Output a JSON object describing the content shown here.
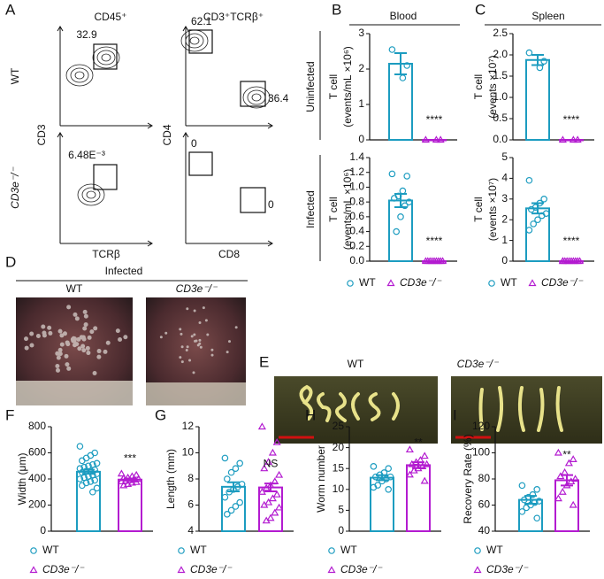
{
  "flow": {
    "letter": "A",
    "rows": [
      "WT",
      "CD3e⁻/⁻"
    ],
    "plots": [
      {
        "title": "CD45⁺",
        "xlabel": "TCRβ",
        "ylabel": "CD3",
        "gates": [
          [
            "32.9"
          ],
          [
            "6.48E⁻³"
          ]
        ]
      },
      {
        "title": "CD3⁺TCRβ⁺",
        "xlabel": "CD8",
        "ylabel": "CD4",
        "gates": [
          [
            "62.1",
            "36.4"
          ],
          [
            "0",
            "0"
          ]
        ]
      }
    ]
  },
  "bars": {
    "B": {
      "letter": "B",
      "title": "Blood",
      "groups": [
        {
          "name": "WT",
          "color": "#1c9cc0"
        },
        {
          "name": "CD3e⁻/⁻",
          "color": "#b31bd0"
        }
      ],
      "plots": [
        {
          "row": "Uninfected",
          "ylabel": [
            "T cell",
            "(events/mL ×10⁶)"
          ],
          "ylim": [
            0,
            3
          ],
          "yticks": [
            0,
            1,
            2,
            3
          ],
          "sig": "****",
          "data": [
            {
              "mean": 2.15,
              "error": 0.3,
              "points": [
                2.55,
                2.1,
                1.75
              ]
            },
            {
              "mean": 0,
              "error": 0,
              "points": [
                0,
                0,
                0
              ]
            }
          ]
        },
        {
          "row": "Infected",
          "ylabel": [
            "T cell",
            "(events/mL ×10⁶)"
          ],
          "ylim": [
            0,
            1.4
          ],
          "yticks": [
            {
              "value": 0,
              "label": "0.0"
            },
            0.2,
            0.4,
            0.6,
            0.8,
            {
              "value": 1,
              "label": "1.0"
            },
            1.2,
            1.4
          ],
          "sig": "****",
          "data": [
            {
              "mean": 0.82,
              "error": 0.09,
              "points": [
                1.18,
                1.15,
                0.95,
                0.88,
                0.85,
                0.8,
                0.75,
                0.6,
                0.4
              ]
            },
            {
              "mean": 0,
              "error": 0,
              "points": [
                0,
                0,
                0,
                0,
                0,
                0,
                0,
                0,
                0
              ]
            }
          ]
        }
      ]
    },
    "C": {
      "letter": "C",
      "title": "Spleen",
      "groups": [
        {
          "name": "WT",
          "color": "#1c9cc0"
        },
        {
          "name": "CD3e⁻/⁻",
          "color": "#b31bd0"
        }
      ],
      "plots": [
        {
          "ylabel": [
            "T cell",
            "(events ×10⁷)"
          ],
          "ylim": [
            0,
            2.5
          ],
          "yticks": [
            {
              "value": 0,
              "label": "0.0"
            },
            0.5,
            {
              "value": 1,
              "label": "1.0"
            },
            1.5,
            {
              "value": 2,
              "label": "2.0"
            },
            2.5
          ],
          "sig": "****",
          "data": [
            {
              "mean": 1.88,
              "error": 0.12,
              "points": [
                2.05,
                1.85,
                1.7
              ]
            },
            {
              "mean": 0,
              "error": 0,
              "points": [
                0,
                0,
                0
              ]
            }
          ]
        },
        {
          "ylabel": [
            "T cell",
            "(events ×10⁷)"
          ],
          "ylim": [
            0,
            5
          ],
          "yticks": [
            0,
            1,
            2,
            3,
            4,
            5
          ],
          "sig": "****",
          "data": [
            {
              "mean": 2.55,
              "error": 0.25,
              "points": [
                3.9,
                3.0,
                2.8,
                2.6,
                2.5,
                2.3,
                2.2,
                2.0,
                1.8,
                1.5
              ]
            },
            {
              "mean": 0,
              "error": 0,
              "points": [
                0,
                0,
                0,
                0,
                0,
                0,
                0,
                0,
                0,
                0
              ]
            }
          ]
        }
      ]
    },
    "F": {
      "letter": "F",
      "groups": [
        {
          "name": "WT",
          "color": "#1c9cc0"
        },
        {
          "name": "CD3e⁻/⁻",
          "color": "#b31bd0"
        }
      ],
      "plots": [
        {
          "ylabel": [
            "Width (μm)"
          ],
          "ylim": [
            0,
            800
          ],
          "yticks": [
            0,
            200,
            400,
            600,
            800
          ],
          "sig": "***",
          "data": [
            {
              "mean": 455,
              "error": 15,
              "points": [
                650,
                600,
                580,
                560,
                540,
                520,
                510,
                500,
                490,
                480,
                470,
                460,
                460,
                450,
                440,
                430,
                420,
                410,
                400,
                390,
                380,
                370,
                350,
                330,
                300
              ]
            },
            {
              "mean": 395,
              "error": 8,
              "points": [
                440,
                430,
                420,
                410,
                405,
                400,
                395,
                390,
                385,
                380,
                375,
                370,
                360,
                350
              ]
            }
          ]
        }
      ]
    },
    "G": {
      "letter": "G",
      "groups": [
        {
          "name": "WT",
          "color": "#1c9cc0"
        },
        {
          "name": "CD3e⁻/⁻",
          "color": "#b31bd0"
        }
      ],
      "plots": [
        {
          "ylabel": [
            "Length (mm)"
          ],
          "ylim": [
            4,
            12
          ],
          "yticks": [
            4,
            6,
            8,
            10,
            12
          ],
          "sig": "NS",
          "data": [
            {
              "mean": 7.4,
              "error": 0.35,
              "points": [
                9.6,
                9.2,
                8.8,
                8.5,
                8.0,
                7.6,
                7.4,
                7.2,
                7.0,
                6.6,
                6.2,
                5.9,
                5.6,
                5.3
              ]
            },
            {
              "mean": 7.35,
              "error": 0.3,
              "points": [
                12.0,
                10.8,
                10.0,
                9.3,
                8.8,
                8.3,
                7.8,
                7.5,
                7.3,
                7.0,
                6.8,
                6.5,
                6.2,
                6.0,
                5.8,
                5.4,
                5.0,
                4.8
              ]
            }
          ]
        }
      ]
    },
    "H": {
      "letter": "H",
      "groups": [
        {
          "name": "WT",
          "color": "#1c9cc0"
        },
        {
          "name": "CD3e⁻/⁻",
          "color": "#b31bd0"
        }
      ],
      "plots": [
        {
          "ylabel": [
            "Worm number"
          ],
          "ylim": [
            0,
            25
          ],
          "yticks": [
            0,
            5,
            10,
            15,
            20,
            25
          ],
          "sig": "**",
          "data": [
            {
              "mean": 12.8,
              "error": 0.6,
              "points": [
                15.5,
                15,
                14,
                13.5,
                13,
                13,
                12.5,
                12,
                11,
                10.5,
                10
              ]
            },
            {
              "mean": 15.8,
              "error": 0.7,
              "points": [
                19.5,
                18,
                17,
                16.5,
                16,
                16,
                15.5,
                15,
                14.5,
                13.5,
                12
              ]
            }
          ]
        }
      ]
    },
    "I": {
      "letter": "I",
      "groups": [
        {
          "name": "WT",
          "color": "#1c9cc0"
        },
        {
          "name": "CD3e⁻/⁻",
          "color": "#b31bd0"
        }
      ],
      "plots": [
        {
          "ylabel": [
            "Recovery Rate (%)"
          ],
          "ylim": [
            40,
            120
          ],
          "yticks": [
            40,
            60,
            80,
            100,
            120
          ],
          "sig": "**",
          "data": [
            {
              "mean": 64,
              "error": 3,
              "points": [
                75,
                72,
                68,
                66,
                64,
                63,
                62,
                60,
                58,
                55,
                50
              ]
            },
            {
              "mean": 79,
              "error": 4,
              "points": [
                100,
                95,
                92,
                85,
                82,
                80,
                78,
                75,
                70,
                65,
                60
              ]
            }
          ]
        }
      ]
    }
  },
  "livers": {
    "letter": "D",
    "title": "Infected",
    "labels": [
      "WT",
      "CD3e⁻/⁻"
    ]
  },
  "worms": {
    "letter": "E",
    "labels": [
      "WT",
      "CD3e⁻/⁻"
    ]
  }
}
